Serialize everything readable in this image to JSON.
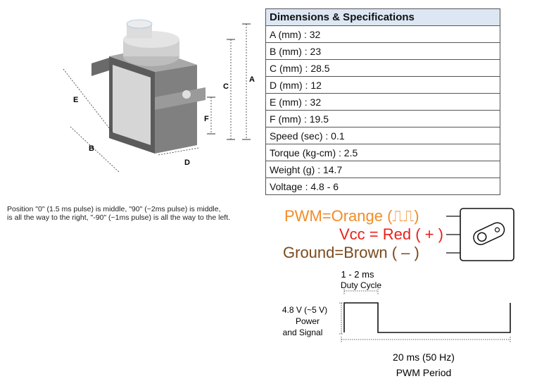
{
  "diagram_labels": {
    "a": "A",
    "b": "B",
    "c": "C",
    "d": "D",
    "e": "E",
    "f": "F"
  },
  "specs": {
    "header": "Dimensions & Specifications",
    "rows": [
      "A (mm) : 32",
      "B (mm) : 23",
      "C (mm) : 28.5",
      "D (mm) : 12",
      "E (mm) : 32",
      "F (mm) : 19.5",
      "Speed (sec) : 0.1",
      "Torque (kg-cm) : 2.5",
      "Weight (g) : 14.7",
      "Voltage : 4.8 - 6"
    ]
  },
  "note": {
    "line1": "Position \"0\" (1.5 ms pulse) is middle, \"90\" (~2ms pulse) is middle,",
    "line2": "is all the way to the right, \"-90\" (~1ms pulse) is all the way to the left."
  },
  "wiring": {
    "pwm": "PWM=Orange (⎍⎍)",
    "vcc": "Vcc = Red ( + )",
    "ground": "Ground=Brown ( – )",
    "colors": {
      "orange": "#f28c28",
      "red": "#e8211c",
      "brown": "#7a4a1c"
    }
  },
  "pwm_diagram": {
    "duty_value": "1 - 2 ms",
    "duty_label": "Duty Cycle",
    "voltage": "4.8 V (~5 V)",
    "power": "Power",
    "signal": "and Signal",
    "period_value": "20 ms (50 Hz)",
    "period_label": "PWM Period"
  }
}
